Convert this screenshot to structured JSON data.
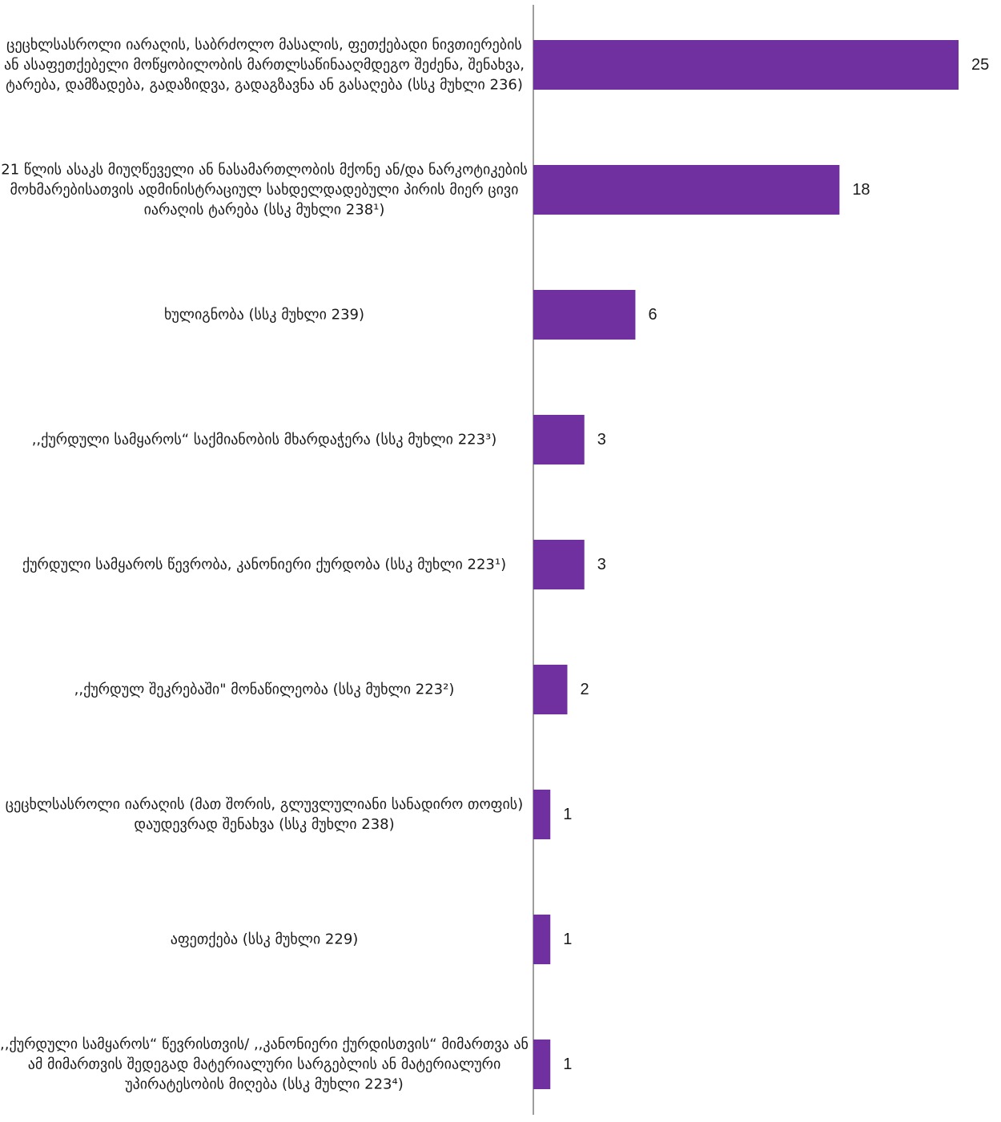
{
  "chart_data": {
    "type": "bar",
    "orientation": "horizontal",
    "bar_color": "#7030a0",
    "axis_color": "#7f7f7f",
    "xlim": [
      0,
      25
    ],
    "grid": false,
    "categories": [
      "ცეცხლსასროლი იარაღის, საბრძოლო მასალის, ფეთქებადი ნივთიერების ან ასაფეთქებელი მოწყობილობის მართლსაწინააღმდეგო შეძენა, შენახვა, ტარება, დამზადება, გადაზიდვა, გადაგზავნა ან გასაღება (სსკ მუხლი 236)",
      "21 წლის ასაკს მიუღწეველი ან ნასამართლობის მქონე ან/და ნარკოტიკების მოხმარებისათვის ადმინისტრაციულ სახდელდადებული პირის მიერ ცივი იარაღის ტარება (სსკ მუხლი 238¹)",
      "ხულიგნობა (სსკ მუხლი 239)",
      ",,ქურდული სამყაროს“ საქმიანობის მხარდაჭერა (სსკ მუხლი 223³)",
      "ქურდული სამყაროს წევრობა, კანონიერი ქურდობა (სსკ  მუხლი 223¹)",
      ",,ქურდულ შეკრებაში\" მონაწილეობა (სსკ მუხლი 223²)",
      "ცეცხლსასროლი იარაღის (მათ შორის, გლუვლულიანი სანადირო თოფის) დაუდევრად შენახვა (სსკ მუხლი 238)",
      "აფეთქება  (სსკ მუხლი 229)",
      ",,ქურდული სამყაროს“ წევრისთვის/ ,,კანონიერი ქურდისთვის“ მიმართვა ან ამ მიმართვის შედეგად მატერიალური სარგებლის ან მატერიალური უპირატესობის მიღება  (სსკ მუხლი 223⁴)"
    ],
    "values": [
      25,
      18,
      6,
      3,
      3,
      2,
      1,
      1,
      1
    ],
    "value_labels": [
      "25",
      "18",
      "6",
      "3",
      "3",
      "2",
      "1",
      "1",
      "1"
    ]
  }
}
